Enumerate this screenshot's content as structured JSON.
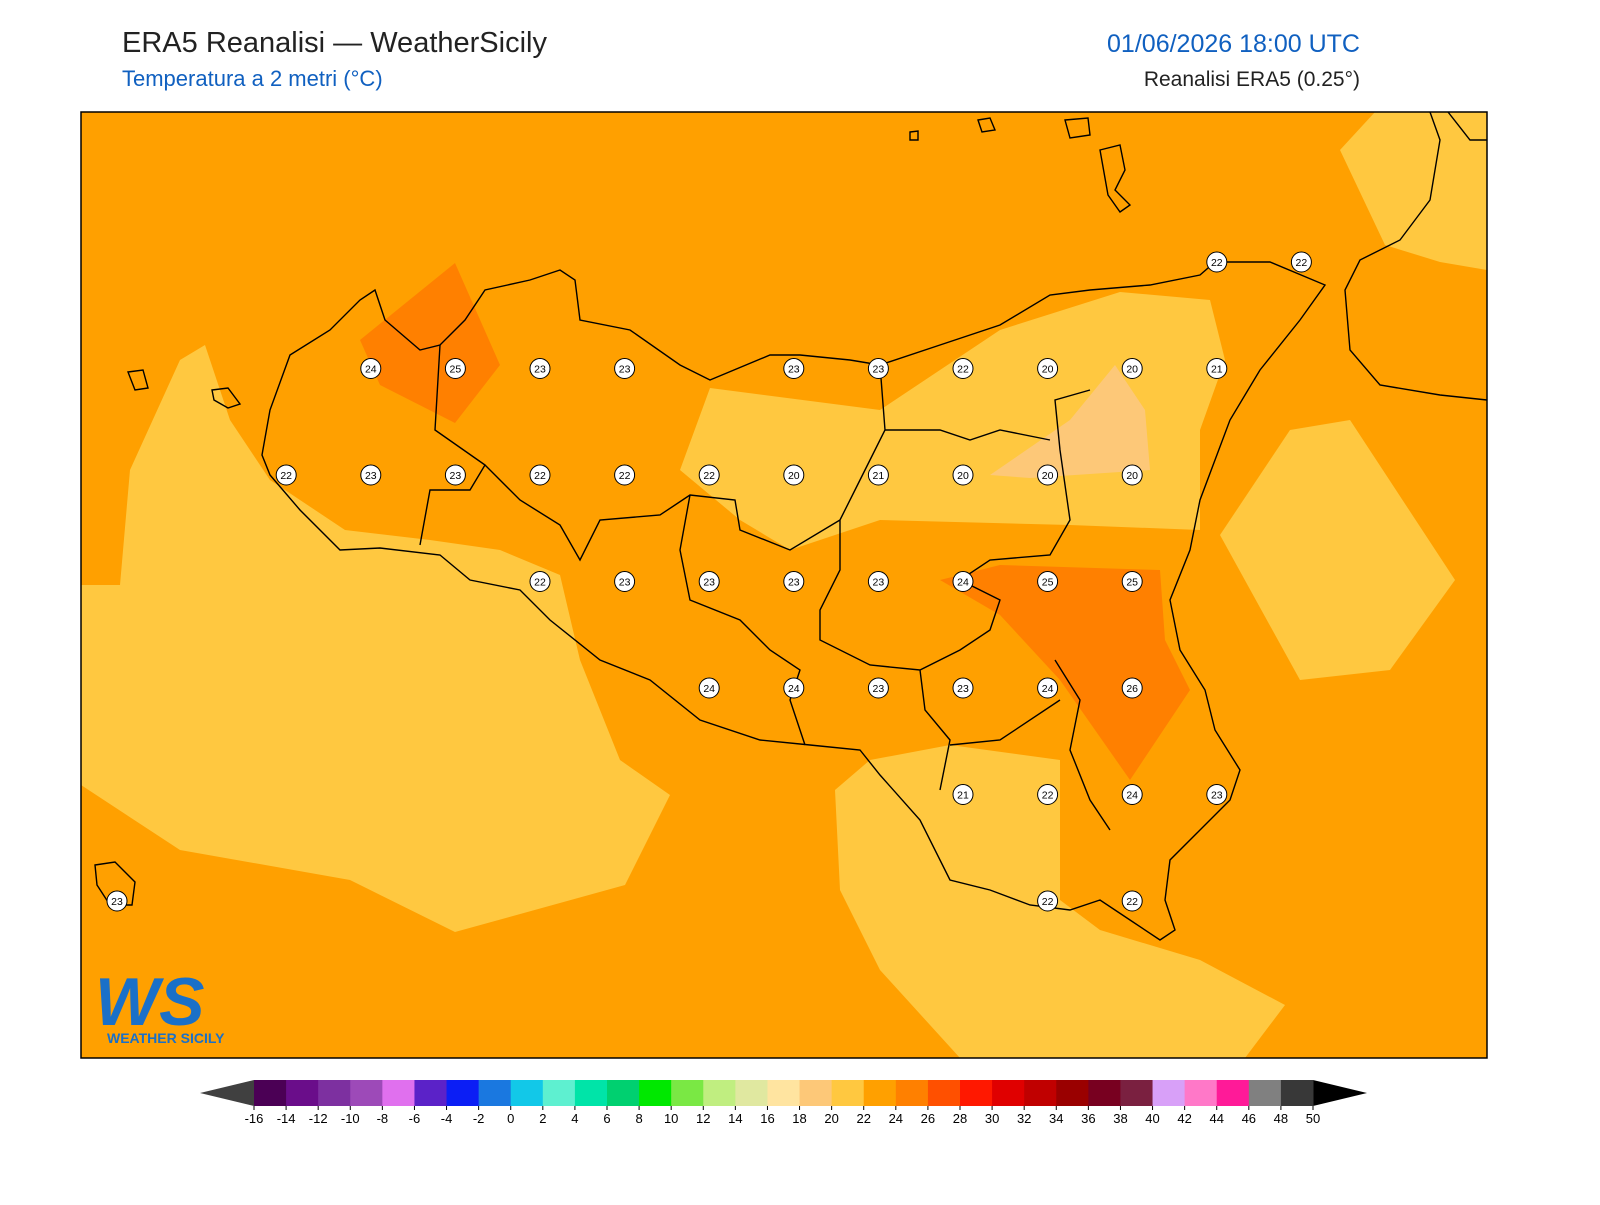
{
  "header": {
    "title": "ERA5 Reanalisi — WeatherSicily",
    "subtitle": "Temperatura a 2 metri (°C)",
    "datetime": "01/06/2026 18:00 UTC",
    "source": "Reanalisi ERA5 (0.25°)"
  },
  "logo": {
    "mark": "WS",
    "name": "WEATHER SICILY"
  },
  "stations": [
    [
      null,
      null,
      null,
      null,
      null,
      null,
      null,
      null,
      null,
      null,
      null,
      null,
      null,
      22,
      22
    ],
    [
      null,
      null,
      null,
      24,
      25,
      23,
      23,
      null,
      23,
      23,
      22,
      20,
      20,
      21,
      null
    ],
    [
      null,
      null,
      22,
      23,
      23,
      22,
      22,
      22,
      20,
      21,
      20,
      20,
      20,
      null,
      null
    ],
    [
      null,
      null,
      null,
      null,
      null,
      22,
      23,
      23,
      23,
      23,
      24,
      25,
      25,
      null,
      null
    ],
    [
      null,
      null,
      null,
      null,
      null,
      null,
      null,
      24,
      24,
      23,
      23,
      24,
      26,
      null,
      null
    ],
    [
      null,
      null,
      null,
      null,
      null,
      null,
      null,
      null,
      null,
      null,
      21,
      22,
      24,
      23,
      null
    ],
    [
      23,
      null,
      null,
      null,
      null,
      null,
      null,
      null,
      null,
      null,
      null,
      22,
      22,
      null,
      null
    ]
  ],
  "colorbar": {
    "ticks": [
      -16,
      -14,
      -12,
      -10,
      -8,
      -6,
      -4,
      -2,
      0,
      2,
      4,
      6,
      8,
      10,
      12,
      14,
      16,
      18,
      20,
      22,
      24,
      26,
      28,
      30,
      32,
      34,
      36,
      38,
      40,
      42,
      44,
      46,
      48,
      50
    ],
    "colors": [
      "#4b0055",
      "#6a0d8a",
      "#7d30a0",
      "#9d4ab8",
      "#e070ee",
      "#5b22c8",
      "#0b1ef5",
      "#1a78e0",
      "#12c8e8",
      "#5ef0d0",
      "#00e4a8",
      "#00d070",
      "#00e800",
      "#7ae844",
      "#c0ee80",
      "#e0e8a0",
      "#ffe4a0",
      "#fdc878",
      "#ffc840",
      "#ffa000",
      "#ff8000",
      "#ff5000",
      "#ff1800",
      "#e00000",
      "#c00000",
      "#9a0000",
      "#780020",
      "#7a2040",
      "#d8a0f8",
      "#ff78c8",
      "#ff1a98",
      "#808080",
      "#383838"
    ]
  }
}
